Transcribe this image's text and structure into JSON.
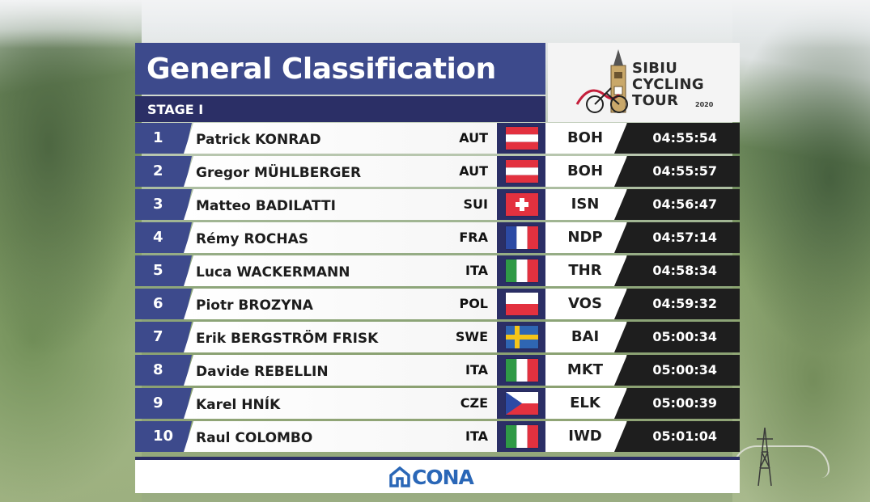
{
  "header": {
    "title": "General Classification",
    "stage": "STAGE I"
  },
  "logo": {
    "line1": "SIBIU",
    "line2": "CYCLING",
    "line3": "TOUR",
    "year": "2020"
  },
  "rows": [
    {
      "pos": "1",
      "name": "Patrick KONRAD",
      "nat": "AUT",
      "flag": "austria",
      "team": "BOH",
      "time": "04:55:54"
    },
    {
      "pos": "2",
      "name": "Gregor MÜHLBERGER",
      "nat": "AUT",
      "flag": "austria",
      "team": "BOH",
      "time": "04:55:57"
    },
    {
      "pos": "3",
      "name": "Matteo BADILATTI",
      "nat": "SUI",
      "flag": "switzerland",
      "team": "ISN",
      "time": "04:56:47"
    },
    {
      "pos": "4",
      "name": "Rémy ROCHAS",
      "nat": "FRA",
      "flag": "france",
      "team": "NDP",
      "time": "04:57:14"
    },
    {
      "pos": "5",
      "name": "Luca WACKERMANN",
      "nat": "ITA",
      "flag": "italy",
      "team": "THR",
      "time": "04:58:34"
    },
    {
      "pos": "6",
      "name": "Piotr BROZYNA",
      "nat": "POL",
      "flag": "poland",
      "team": "VOS",
      "time": "04:59:32"
    },
    {
      "pos": "7",
      "name": "Erik BERGSTRÖM FRISK",
      "nat": "SWE",
      "flag": "sweden",
      "team": "BAI",
      "time": "05:00:34"
    },
    {
      "pos": "8",
      "name": "Davide REBELLIN",
      "nat": "ITA",
      "flag": "italy",
      "team": "MKT",
      "time": "05:00:34"
    },
    {
      "pos": "9",
      "name": "Karel HNÍK",
      "nat": "CZE",
      "flag": "czechia",
      "team": "ELK",
      "time": "05:00:39"
    },
    {
      "pos": "10",
      "name": "Raul COLOMBO",
      "nat": "ITA",
      "flag": "italy",
      "team": "IWD",
      "time": "05:01:04"
    }
  ],
  "footer": {
    "sponsor": "CONA",
    "sponsor_color": "#2a67b7"
  },
  "colors": {
    "header_blue": "#3d4a8c",
    "stage_navy": "#2b2f66",
    "time_black": "#1e1e1e"
  }
}
